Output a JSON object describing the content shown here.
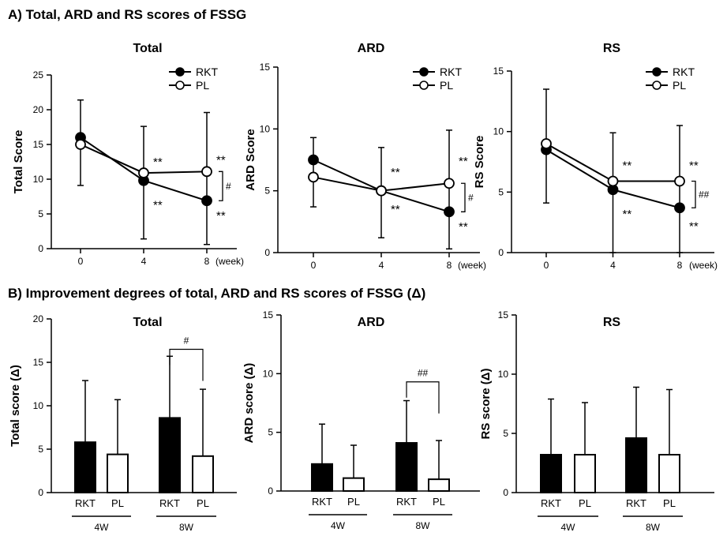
{
  "section_a_title": "A) Total, ARD and RS scores of FSSG",
  "section_b_title": "B) Improvement degrees of total, ARD and RS scores of FSSG (Δ)",
  "chart_data": [
    {
      "id": "a-total",
      "type": "line",
      "title": "Total",
      "ylabel": "Total Score",
      "xlabel": "(week)",
      "x": [
        0,
        4,
        8
      ],
      "ylim": [
        0,
        25
      ],
      "yticks": [
        0,
        5,
        10,
        15,
        20,
        25
      ],
      "series": [
        {
          "name": "RKT",
          "marker": "filled",
          "values": [
            16,
            9.8,
            6.9
          ],
          "err_up": [
            5.4,
            7.8,
            12.7
          ],
          "err_down": [
            6.9,
            8.4,
            6.3
          ]
        },
        {
          "name": "PL",
          "marker": "open",
          "values": [
            15,
            10.9,
            11.1
          ],
          "err_up": [
            0,
            0,
            0
          ],
          "err_down": [
            0,
            0,
            0
          ]
        }
      ],
      "annotations": [
        {
          "x": 4,
          "y": 12.5,
          "text": "**"
        },
        {
          "x": 4,
          "y": 6.3,
          "text": "**"
        },
        {
          "x": 8,
          "y": 12.8,
          "text": "**"
        },
        {
          "x": 8,
          "y": 4.8,
          "text": "**"
        }
      ],
      "bracket": {
        "x": 8,
        "y1": 11.1,
        "y2": 6.9,
        "text": "#"
      }
    },
    {
      "id": "a-ard",
      "type": "line",
      "title": "ARD",
      "ylabel": "ARD Score",
      "xlabel": "(week)",
      "x": [
        0,
        4,
        8
      ],
      "ylim": [
        0,
        15
      ],
      "yticks": [
        0,
        5,
        10,
        15
      ],
      "series": [
        {
          "name": "RKT",
          "marker": "filled",
          "values": [
            7.5,
            5,
            3.3
          ],
          "err_up": [
            1.8,
            3.5,
            6.6
          ],
          "err_down": [
            3.8,
            3.8,
            3.0
          ]
        },
        {
          "name": "PL",
          "marker": "open",
          "values": [
            6.1,
            5,
            5.6
          ],
          "err_up": [
            0,
            0,
            0
          ],
          "err_down": [
            0,
            0,
            0
          ]
        }
      ],
      "annotations": [
        {
          "x": 4,
          "y": 6.5,
          "text": "**"
        },
        {
          "x": 4,
          "y": 3.5,
          "text": "**"
        },
        {
          "x": 8,
          "y": 7.4,
          "text": "**"
        },
        {
          "x": 8,
          "y": 2.1,
          "text": "**"
        }
      ],
      "bracket": {
        "x": 8,
        "y1": 5.6,
        "y2": 3.3,
        "text": "#"
      }
    },
    {
      "id": "a-rs",
      "type": "line",
      "title": "RS",
      "ylabel": "RS Score",
      "xlabel": "(week)",
      "x": [
        0,
        4,
        8
      ],
      "ylim": [
        0,
        15
      ],
      "yticks": [
        0,
        5,
        10,
        15
      ],
      "series": [
        {
          "name": "RKT",
          "marker": "filled",
          "values": [
            8.5,
            5.2,
            3.7
          ],
          "err_up": [
            5,
            4.7,
            6.8
          ],
          "err_down": [
            4.4,
            5.2,
            3.7
          ]
        },
        {
          "name": "PL",
          "marker": "open",
          "values": [
            9,
            5.9,
            5.9
          ],
          "err_up": [
            0,
            0,
            0
          ],
          "err_down": [
            0,
            0,
            0
          ]
        }
      ],
      "annotations": [
        {
          "x": 4,
          "y": 7.2,
          "text": "**"
        },
        {
          "x": 4,
          "y": 3.2,
          "text": "**"
        },
        {
          "x": 8,
          "y": 7.2,
          "text": "**"
        },
        {
          "x": 8,
          "y": 2.2,
          "text": "**"
        }
      ],
      "bracket": {
        "x": 8,
        "y1": 5.9,
        "y2": 3.7,
        "text": "##"
      }
    },
    {
      "id": "b-total",
      "type": "bar",
      "title": "Total",
      "ylabel": "Total score (Δ)",
      "ylim": [
        0,
        20
      ],
      "yticks": [
        0,
        5,
        10,
        15,
        20
      ],
      "categories": [
        "RKT",
        "PL",
        "RKT",
        "PL"
      ],
      "groups": [
        "4W",
        "8W"
      ],
      "values": [
        5.8,
        4.4,
        8.6,
        4.2
      ],
      "err_up": [
        7.1,
        6.3,
        7.1,
        7.7
      ],
      "fills": [
        "filled",
        "open",
        "filled",
        "open"
      ],
      "bracket": {
        "from": 2,
        "to": 3,
        "y": 16.5,
        "text": "#"
      }
    },
    {
      "id": "b-ard",
      "type": "bar",
      "title": "ARD",
      "ylabel": "ARD score (Δ)",
      "ylim": [
        0,
        15
      ],
      "yticks": [
        0,
        5,
        10,
        15
      ],
      "categories": [
        "RKT",
        "PL",
        "RKT",
        "PL"
      ],
      "groups": [
        "4W",
        "8W"
      ],
      "values": [
        2.3,
        1.1,
        4.1,
        1.0
      ],
      "err_up": [
        3.4,
        2.8,
        3.6,
        3.3
      ],
      "fills": [
        "filled",
        "open",
        "filled",
        "open"
      ],
      "bracket": {
        "from": 2,
        "to": 3,
        "y": 9.3,
        "text": "##"
      }
    },
    {
      "id": "b-rs",
      "type": "bar",
      "title": "RS",
      "ylabel": "RS score (Δ)",
      "ylim": [
        0,
        15
      ],
      "yticks": [
        0,
        5,
        10,
        15
      ],
      "categories": [
        "RKT",
        "PL",
        "RKT",
        "PL"
      ],
      "groups": [
        "4W",
        "8W"
      ],
      "values": [
        3.2,
        3.2,
        4.6,
        3.2
      ],
      "err_up": [
        4.7,
        4.4,
        4.3,
        5.5
      ],
      "fills": [
        "filled",
        "open",
        "filled",
        "open"
      ],
      "bracket": null
    }
  ]
}
